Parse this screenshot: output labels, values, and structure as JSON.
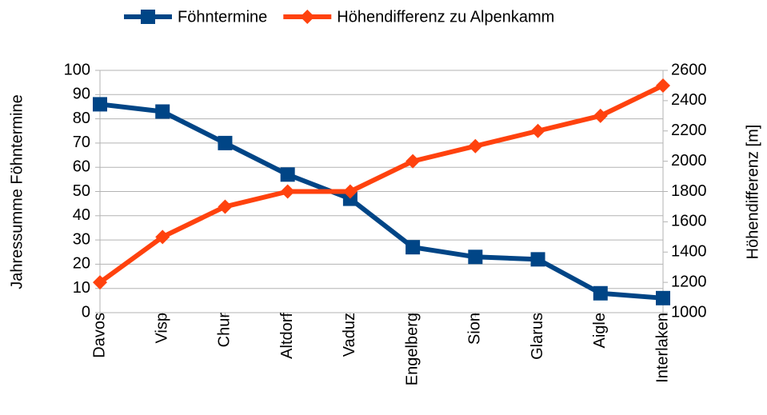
{
  "chart_data": {
    "type": "line",
    "categories": [
      "Davos",
      "Visp",
      "Chur",
      "Altdorf",
      "Vaduz",
      "Engelberg",
      "Sion",
      "Glarus",
      "Aigle",
      "Interlaken"
    ],
    "series": [
      {
        "name": "Föhntermine",
        "color": "#004586",
        "marker": "square",
        "values": [
          86,
          83,
          70,
          57,
          47,
          27,
          23,
          22,
          8,
          6
        ]
      },
      {
        "name": "Höhendifferenz zu Alpenkamm",
        "color": "#ff420e",
        "marker": "diamond",
        "axis": "y2",
        "values": [
          1200,
          1500,
          1700,
          1800,
          1800,
          2000,
          2100,
          2200,
          2300,
          2500
        ]
      }
    ],
    "ylabel": "Jahressumme Föhntermine",
    "y2label": "Höhendifferenz [m]",
    "ylim": [
      0,
      100
    ],
    "yticks": [
      0,
      10,
      20,
      30,
      40,
      50,
      60,
      70,
      80,
      90,
      100
    ],
    "y2lim": [
      1000,
      2600
    ],
    "y2ticks": [
      1000,
      1200,
      1400,
      1600,
      1800,
      2000,
      2200,
      2400,
      2600
    ],
    "grid": true,
    "legend": "top"
  }
}
